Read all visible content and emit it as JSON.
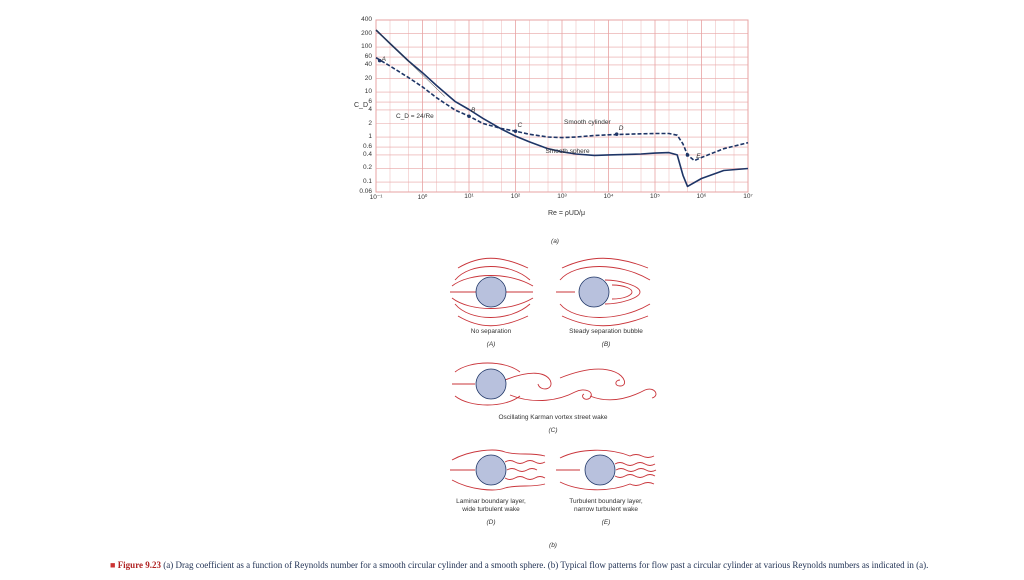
{
  "chart_data": {
    "type": "line",
    "xlabel": "Re = ρUD/μ",
    "ylabel": "C_D",
    "x_scale": "log",
    "y_scale": "log",
    "xlim": [
      0.1,
      10000000
    ],
    "ylim": [
      0.06,
      400
    ],
    "x_ticks": [
      "10⁻¹",
      "10⁰",
      "10¹",
      "10²",
      "10³",
      "10⁴",
      "10⁵",
      "10⁶",
      "10⁷"
    ],
    "y_ticks": [
      "400",
      "200",
      "100",
      "60",
      "40",
      "20",
      "10",
      "6",
      "4",
      "2",
      "1",
      "0.6",
      "0.4",
      "0.2",
      "0.1",
      "0.06"
    ],
    "grid": true,
    "panel_label": "(a)",
    "series": [
      {
        "name": "Smooth cylinder",
        "style": "dashed",
        "color": "#1e3566",
        "x": [
          0.1,
          0.2,
          0.5,
          1,
          2,
          5,
          10,
          20,
          50,
          100,
          200,
          500,
          1000,
          2000,
          5000,
          10000,
          50000,
          100000,
          200000,
          300000,
          400000,
          500000,
          700000,
          1000000,
          3000000,
          10000000
        ],
        "y": [
          58,
          38,
          21,
          13,
          7.5,
          4,
          2.9,
          2.0,
          1.55,
          1.35,
          1.15,
          1.0,
          0.97,
          1.0,
          1.08,
          1.12,
          1.18,
          1.2,
          1.2,
          1.1,
          0.7,
          0.4,
          0.3,
          0.35,
          0.55,
          0.75
        ]
      },
      {
        "name": "Smooth sphere",
        "style": "solid",
        "color": "#1e3566",
        "x": [
          0.1,
          0.2,
          0.5,
          1,
          2,
          5,
          10,
          20,
          50,
          100,
          200,
          500,
          1000,
          2000,
          5000,
          10000,
          50000,
          100000,
          200000,
          300000,
          400000,
          500000,
          1000000,
          3000000,
          10000000
        ],
        "y": [
          240,
          120,
          49,
          27,
          14,
          6.2,
          4.1,
          2.6,
          1.5,
          1.05,
          0.78,
          0.55,
          0.47,
          0.42,
          0.39,
          0.4,
          0.42,
          0.44,
          0.45,
          0.4,
          0.14,
          0.08,
          0.12,
          0.18,
          0.2
        ]
      }
    ],
    "reference_line": {
      "label": "C_D = 24/Re",
      "x": [
        0.1,
        3
      ],
      "y": [
        240,
        8
      ]
    },
    "annotations": [
      {
        "label": "A",
        "x": 0.12,
        "y": 40
      },
      {
        "label": "B",
        "x": 10,
        "y": 2.9
      },
      {
        "label": "C",
        "x": 100,
        "y": 1.35
      },
      {
        "label": "D",
        "x": 15000,
        "y": 1.16
      },
      {
        "label": "E",
        "x": 700000,
        "y": 0.28
      },
      {
        "label": "Smooth cylinder",
        "x": 1000,
        "y": 1.6
      },
      {
        "label": "Smooth sphere",
        "x": 400,
        "y": 0.36
      }
    ],
    "marker_points": [
      {
        "label": "A",
        "x": 0.12,
        "y": 50
      },
      {
        "label": "B",
        "x": 10,
        "y": 2.9
      },
      {
        "label": "C",
        "x": 100,
        "y": 1.35
      },
      {
        "label": "D",
        "x": 15000,
        "y": 1.16
      },
      {
        "label": "E",
        "x": 500000,
        "y": 0.4
      }
    ]
  },
  "flow_panel": {
    "panel_label": "(b)",
    "items": [
      {
        "title": "No separation",
        "tag": "(A)"
      },
      {
        "title": "Steady separation bubble",
        "tag": "(B)"
      },
      {
        "title": "Oscillating Karman vortex street wake",
        "tag": "(C)"
      },
      {
        "title_line1": "Laminar boundary layer,",
        "title_line2": "wide turbulent wake",
        "tag": "(D)"
      },
      {
        "title_line1": "Turbulent boundary layer,",
        "title_line2": "narrow turbulent wake",
        "tag": "(E)"
      }
    ]
  },
  "caption": {
    "bullet": "■",
    "figure": "Figure 9.23",
    "text": "(a) Drag coefficient as a function of Reynolds number for a smooth circular cylinder and a smooth sphere. (b) Typical flow patterns for flow past a circular cylinder at various Reynolds numbers as indicated in (a)."
  },
  "colors": {
    "grid": "#e7a3a3",
    "curve": "#1e3566",
    "stream": "#c9343a",
    "cylinder": "#b8c1dd"
  }
}
